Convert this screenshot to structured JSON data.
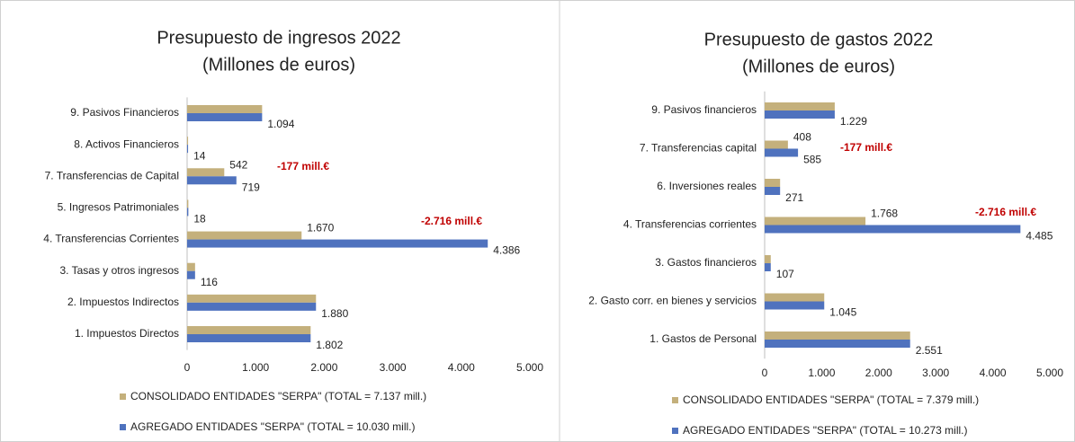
{
  "chart_data": [
    {
      "type": "bar",
      "orientation": "horizontal",
      "title": "Presupuesto de ingresos 2022",
      "subtitle": "(Millones de euros)",
      "categories": [
        "1. Impuestos Directos",
        "2. Impuestos Indirectos",
        "3. Tasas y otros ingresos",
        "4. Transferencias Corrientes",
        "5. Ingresos Patrimoniales",
        "7. Transferencias de Capital",
        "8. Activos Financieros",
        "9. Pasivos Financieros"
      ],
      "series": [
        {
          "name": "CONSOLIDADO ENTIDADES \"SERPA\" (TOTAL = 7.137 mill.)",
          "color": "#c4b07c",
          "values": [
            1802,
            1880,
            116,
            1670,
            18,
            542,
            14,
            1094
          ],
          "value_labels": [
            null,
            null,
            null,
            "1.670",
            null,
            "542",
            null,
            null
          ]
        },
        {
          "name": "AGREGADO ENTIDADES \"SERPA\" (TOTAL = 10.030 mill.)",
          "color": "#4f72be",
          "values": [
            1802,
            1880,
            116,
            4386,
            18,
            719,
            14,
            1094
          ],
          "value_labels": [
            "1.802",
            "1.880",
            "116",
            "4.386",
            "18",
            "719",
            "14",
            "1.094"
          ]
        }
      ],
      "xlim": [
        0,
        5000
      ],
      "xticks": [
        0,
        {
          "value": 1000,
          "label": "1.000"
        },
        {
          "value": 2000,
          "label": "2.000"
        },
        {
          "value": 3000,
          "label": "3.000"
        },
        {
          "value": 4000,
          "label": "4.000"
        },
        {
          "value": 5000,
          "label": "5.000"
        }
      ],
      "grid": false,
      "legend": "bottom",
      "annotations": [
        "-177 mill.€",
        "-2.716 mill.€"
      ]
    },
    {
      "type": "bar",
      "orientation": "horizontal",
      "title": "Presupuesto de gastos 2022",
      "subtitle": "(Millones de euros)",
      "categories": [
        "1. Gastos de Personal",
        "2. Gasto corr. en bienes y servicios",
        "3. Gastos financieros",
        "4. Transferencias corrientes",
        "6. Inversiones reales",
        "7. Transferencias capital",
        "9. Pasivos financieros"
      ],
      "series": [
        {
          "name": "CONSOLIDADO ENTIDADES \"SERPA\" (TOTAL = 7.379 mill.)",
          "color": "#c4b07c",
          "values": [
            2551,
            1045,
            107,
            1768,
            271,
            408,
            1229
          ],
          "value_labels": [
            null,
            null,
            null,
            "1.768",
            null,
            "408",
            null
          ]
        },
        {
          "name": "AGREGADO ENTIDADES \"SERPA\" (TOTAL = 10.273 mill.)",
          "color": "#4f72be",
          "values": [
            2551,
            1045,
            107,
            4485,
            271,
            585,
            1229
          ],
          "value_labels": [
            "2.551",
            "1.045",
            "107",
            "4.485",
            "271",
            "585",
            "1.229"
          ]
        }
      ],
      "xlim": [
        0,
        5000
      ],
      "xticks": [
        0,
        {
          "value": 1000,
          "label": "1.000"
        },
        {
          "value": 2000,
          "label": "2.000"
        },
        {
          "value": 3000,
          "label": "3.000"
        },
        {
          "value": 4000,
          "label": "4.000"
        },
        {
          "value": 5000,
          "label": "5.000"
        }
      ],
      "grid": false,
      "legend": "bottom",
      "annotations": [
        "-177 mill.€",
        "-2.716 mill.€"
      ]
    }
  ]
}
